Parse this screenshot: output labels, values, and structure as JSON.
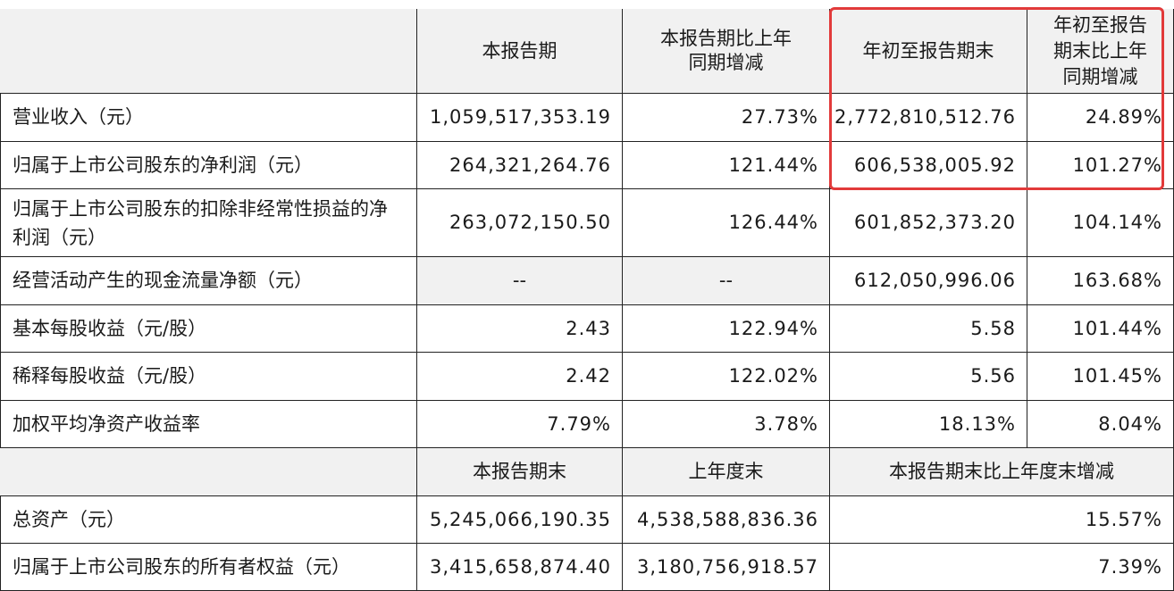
{
  "header": {
    "col1": "本报告期",
    "col2": "本报告期比上年同期增减",
    "col3": "年初至报告期末",
    "col4": "年初至报告期末比上年同期增减"
  },
  "rows": [
    {
      "label": "营业收入（元）",
      "v1": "1,059,517,353.19",
      "v2": "27.73%",
      "v3": "2,772,810,512.76",
      "v4": "24.89%"
    },
    {
      "label": "归属于上市公司股东的净利润（元）",
      "v1": "264,321,264.76",
      "v2": "121.44%",
      "v3": "606,538,005.92",
      "v4": "101.27%"
    },
    {
      "label": "归属于上市公司股东的扣除非经常性损益的净利润（元）",
      "v1": "263,072,150.50",
      "v2": "126.44%",
      "v3": "601,852,373.20",
      "v4": "104.14%"
    },
    {
      "label": "经营活动产生的现金流量净额（元）",
      "v1": "--",
      "v2": "--",
      "v3": "612,050,996.06",
      "v4": "163.68%"
    },
    {
      "label": "基本每股收益（元/股）",
      "v1": "2.43",
      "v2": "122.94%",
      "v3": "5.58",
      "v4": "101.44%"
    },
    {
      "label": "稀释每股收益（元/股）",
      "v1": "2.42",
      "v2": "122.02%",
      "v3": "5.56",
      "v4": "101.45%"
    },
    {
      "label": "加权平均净资产收益率",
      "v1": "7.79%",
      "v2": "3.78%",
      "v3": "18.13%",
      "v4": "8.04%"
    }
  ],
  "header2": {
    "col1": "本报告期末",
    "col2": "上年度末",
    "col3": "本报告期末比上年度末增减"
  },
  "rows2": [
    {
      "label": "总资产（元）",
      "v1": "5,245,066,190.35",
      "v2": "4,538,588,836.36",
      "v3": "15.57%"
    },
    {
      "label": "归属于上市公司股东的所有者权益（元）",
      "v1": "3,415,658,874.40",
      "v2": "3,180,756,918.57",
      "v3": "7.39%"
    }
  ],
  "highlight_color": "#e23a3a"
}
